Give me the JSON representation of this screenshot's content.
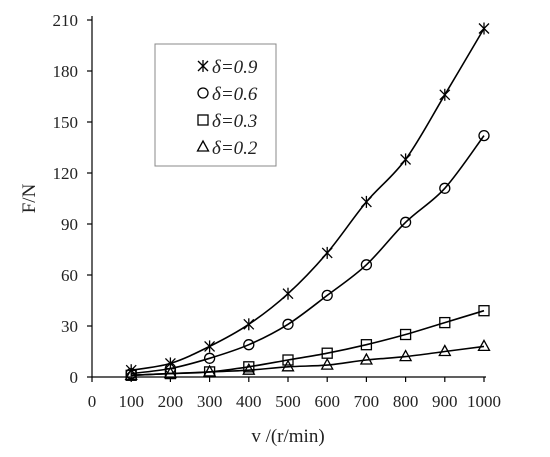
{
  "chart_data": {
    "type": "line",
    "x_label": "v /(r/min)",
    "y_label": "F/N",
    "x_ticks": [
      0,
      100,
      200,
      300,
      400,
      500,
      600,
      700,
      800,
      900,
      1000
    ],
    "y_ticks": [
      0,
      30,
      60,
      90,
      120,
      150,
      180,
      210
    ],
    "xlim": [
      0,
      1000
    ],
    "ylim": [
      0,
      210
    ],
    "grid": false,
    "legend_position": "top-left",
    "x": [
      100,
      200,
      300,
      400,
      500,
      600,
      700,
      800,
      900,
      1000
    ],
    "series": [
      {
        "name": "δ=0.9",
        "marker": "star",
        "values": [
          4,
          8,
          18,
          31,
          49,
          73,
          103,
          128,
          166,
          205
        ]
      },
      {
        "name": "δ=0.6",
        "marker": "circle",
        "values": [
          2,
          5,
          11,
          19,
          31,
          48,
          66,
          91,
          111,
          142
        ]
      },
      {
        "name": "δ=0.3",
        "marker": "square",
        "values": [
          1,
          2,
          3,
          6,
          10,
          14,
          19,
          25,
          32,
          39
        ]
      },
      {
        "name": "δ=0.2",
        "marker": "triangle",
        "values": [
          1,
          2,
          3,
          4,
          6,
          7,
          10,
          12,
          15,
          18
        ]
      }
    ]
  }
}
